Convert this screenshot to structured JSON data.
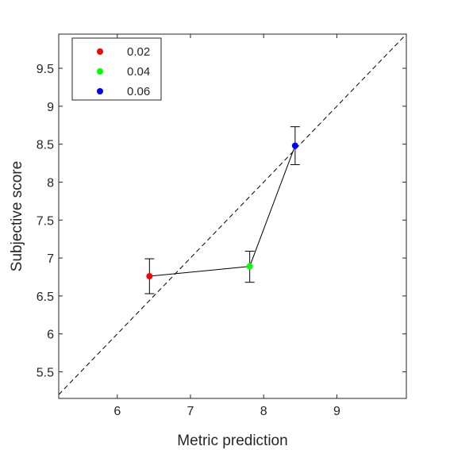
{
  "chart_data": {
    "type": "scatter",
    "xlabel": "Metric prediction",
    "ylabel": "Subjective score",
    "xlim": [
      5.2,
      9.95
    ],
    "ylim": [
      5.15,
      9.95
    ],
    "xticks": [
      6,
      7,
      8,
      9
    ],
    "yticks": [
      5.5,
      6,
      6.5,
      7,
      7.5,
      8,
      8.5,
      9,
      9.5
    ],
    "xtick_labels": [
      "6",
      "7",
      "8",
      "9"
    ],
    "ytick_labels": [
      "5.5",
      "6",
      "6.5",
      "7",
      "7.5",
      "8",
      "8.5",
      "9",
      "9.5"
    ],
    "grid": false,
    "legend_position": "top-left",
    "reference_line": "identity (y = x), dashed",
    "connecting_line": true,
    "series": [
      {
        "name": "0.02",
        "color": "#ff0000",
        "x": 6.44,
        "y": 6.76,
        "err_low": 6.53,
        "err_high": 6.99
      },
      {
        "name": "0.04",
        "color": "#00ff00",
        "x": 7.81,
        "y": 6.89,
        "err_low": 6.68,
        "err_high": 7.09
      },
      {
        "name": "0.06",
        "color": "#0000ff",
        "x": 8.43,
        "y": 8.48,
        "err_low": 8.23,
        "err_high": 8.73
      }
    ]
  }
}
